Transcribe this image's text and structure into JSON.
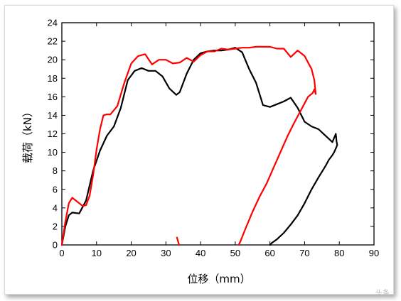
{
  "chart_data": {
    "type": "line",
    "xlabel": "位移（mm）",
    "ylabel": "载荷（kN）",
    "xlim": [
      0,
      90
    ],
    "ylim": [
      0,
      24
    ],
    "xticks": [
      "0",
      "10",
      "20",
      "30",
      "40",
      "50",
      "60",
      "70",
      "80",
      "90"
    ],
    "yticks": [
      "0",
      "2",
      "4",
      "6",
      "8",
      "10",
      "12",
      "14",
      "16",
      "18",
      "20",
      "22",
      "24"
    ],
    "grid": false,
    "series": [
      {
        "color": "#000000",
        "x": [
          0,
          1,
          2,
          3,
          5,
          7,
          9,
          11,
          13,
          15,
          17,
          19,
          21,
          23,
          25,
          27,
          29,
          31,
          33,
          34,
          36,
          38,
          40,
          42,
          44,
          46,
          48,
          50,
          52,
          54,
          56,
          58,
          60,
          62,
          64,
          66,
          68,
          70,
          72,
          74,
          76,
          78,
          79,
          79.2,
          79.4,
          79.2,
          78.5,
          78,
          77,
          76,
          74,
          72,
          70,
          68,
          66,
          64,
          62,
          60.5,
          60
        ],
        "y": [
          0,
          2.0,
          3.2,
          3.5,
          3.4,
          4.8,
          8.0,
          10.2,
          11.8,
          12.8,
          14.8,
          17.8,
          18.8,
          19.1,
          18.8,
          18.8,
          18.2,
          16.9,
          16.2,
          16.5,
          18.5,
          20.0,
          20.7,
          20.9,
          21.0,
          21.0,
          21.1,
          21.3,
          20.8,
          19.0,
          17.5,
          15.1,
          14.9,
          15.2,
          15.5,
          15.9,
          14.8,
          13.3,
          12.8,
          12.5,
          11.8,
          11.1,
          12.0,
          11.2,
          10.8,
          10.6,
          10.0,
          9.7,
          9.2,
          8.5,
          7.3,
          6.0,
          4.5,
          3.2,
          2.2,
          1.3,
          0.6,
          0.2,
          0
        ]
      },
      {
        "color": "#ff0000",
        "x": [
          0,
          1,
          2,
          3,
          4,
          5,
          6,
          7,
          8,
          9,
          10,
          11,
          12,
          13,
          14,
          16,
          18,
          20,
          22,
          24,
          26,
          28,
          30,
          32,
          34,
          36,
          38,
          40,
          42,
          44,
          46,
          48,
          50,
          52,
          54,
          56,
          58,
          60,
          62,
          64,
          66,
          68,
          70,
          72,
          72.8,
          73.2,
          72.8,
          72.3,
          71,
          69,
          67,
          65,
          63,
          61,
          59,
          57,
          55,
          53,
          51.5,
          51
        ],
        "y": [
          0,
          2.5,
          4.5,
          5.1,
          4.8,
          4.5,
          4.2,
          4.3,
          5.3,
          7.5,
          10.3,
          12.5,
          14.0,
          14.1,
          14.1,
          15.0,
          17.5,
          19.6,
          20.4,
          20.6,
          19.5,
          20.0,
          20.0,
          19.6,
          19.7,
          20.2,
          19.8,
          20.5,
          20.9,
          20.9,
          21.2,
          21.1,
          21.2,
          21.3,
          21.3,
          21.4,
          21.4,
          21.4,
          21.2,
          21.2,
          20.3,
          21.0,
          20.4,
          19.0,
          17.8,
          16.3,
          16.8,
          16.4,
          16.0,
          14.6,
          13.2,
          11.7,
          10.0,
          8.3,
          6.6,
          5.2,
          3.6,
          1.8,
          0.4,
          0
        ]
      },
      {
        "color": "#ff0000",
        "x": [
          33.2,
          33.5,
          33.8
        ],
        "y": [
          0.8,
          0.4,
          0
        ]
      }
    ]
  },
  "watermark": "头条"
}
